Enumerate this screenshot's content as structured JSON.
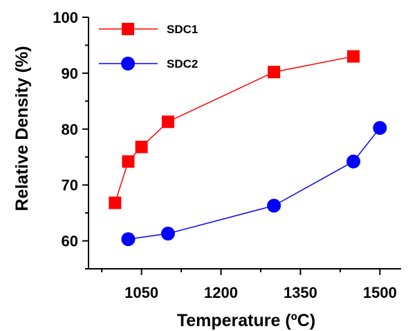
{
  "chart_data": {
    "type": "line",
    "xlabel": "Temperature (ºC)",
    "ylabel": "Relative Density  (%)",
    "xlim": [
      950,
      1540
    ],
    "ylim": [
      55,
      100
    ],
    "xticks": [
      1050,
      1200,
      1350,
      1500
    ],
    "xticks_minor": [
      975,
      1125,
      1275,
      1425
    ],
    "yticks": [
      60,
      70,
      80,
      90,
      100
    ],
    "yticks_minor": [
      55,
      65,
      75,
      85,
      95
    ],
    "legend_position": "top-left",
    "grid": false,
    "series": [
      {
        "name": "SDC1",
        "color": "#ff0000",
        "marker": "square",
        "x": [
          1000,
          1025,
          1050,
          1100,
          1300,
          1450
        ],
        "y": [
          66.8,
          74.2,
          76.8,
          81.3,
          90.2,
          93.0
        ]
      },
      {
        "name": "SDC2",
        "color": "#0000ff",
        "marker": "circle",
        "x": [
          1025,
          1100,
          1300,
          1450,
          1500
        ],
        "y": [
          60.3,
          61.3,
          66.3,
          74.2,
          80.2
        ]
      }
    ]
  }
}
